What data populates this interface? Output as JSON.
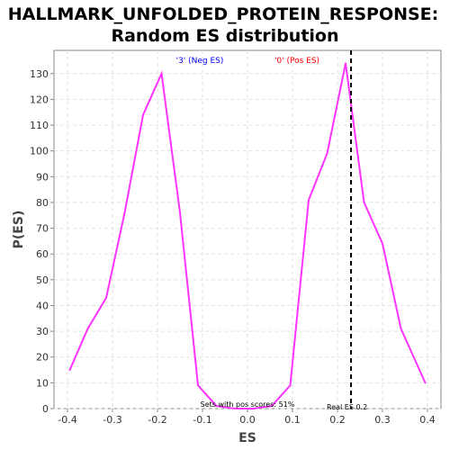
{
  "chart_data": {
    "type": "line",
    "title_line1": "HALLMARK_UNFOLDED_PROTEIN_RESPONSE:",
    "title_line2": "Random ES distribution",
    "xlabel": "ES",
    "ylabel": "P(ES)",
    "xlim": [
      -0.43,
      0.43
    ],
    "ylim": [
      0,
      139
    ],
    "x_ticks": [
      -0.4,
      -0.3,
      -0.2,
      -0.1,
      0.0,
      0.1,
      0.2,
      0.3,
      0.4
    ],
    "x_tick_labels": [
      "-0.4",
      "-0.3",
      "-0.2",
      "-0.1",
      "0.0",
      "0.1",
      "0.2",
      "0.3",
      "0.4"
    ],
    "y_ticks": [
      0,
      10,
      20,
      30,
      40,
      50,
      60,
      70,
      80,
      90,
      100,
      110,
      120,
      130
    ],
    "y_tick_labels": [
      "0",
      "10",
      "20",
      "30",
      "40",
      "50",
      "60",
      "70",
      "80",
      "90",
      "100",
      "110",
      "120",
      "130"
    ],
    "grid": true,
    "series": [
      {
        "color": "#ff33ff",
        "x": [
          -0.395,
          -0.355,
          -0.314,
          -0.273,
          -0.232,
          -0.191,
          -0.15,
          -0.11,
          -0.069,
          -0.028,
          0.013,
          0.054,
          0.095,
          0.136,
          0.177,
          0.218,
          0.259,
          0.3,
          0.341,
          0.395
        ],
        "y": [
          15,
          31,
          43,
          76,
          114,
          130,
          76,
          9,
          1,
          0,
          0,
          1,
          9,
          81,
          99,
          134,
          80,
          64,
          31,
          10
        ]
      }
    ],
    "real_es": 0.23,
    "real_es_color": "#000000",
    "annotations": {
      "neg_label": "'3' (Neg ES)",
      "neg_color": "#0000ff",
      "pos_label": "'0' (Pos ES)",
      "pos_color": "#ff0000",
      "pos_scores": "Sets with pos scores: 51%",
      "real_es_label": "Real ES 0.2"
    }
  }
}
